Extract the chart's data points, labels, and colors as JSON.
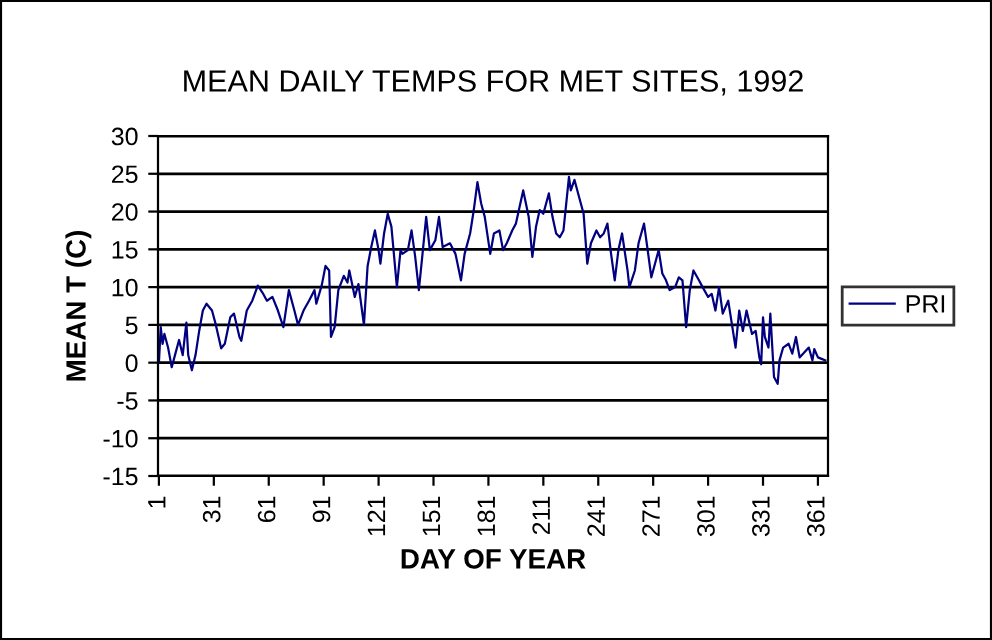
{
  "chart_data": {
    "type": "line",
    "title": "MEAN DAILY TEMPS FOR MET SITES, 1992",
    "xlabel": "DAY OF YEAR",
    "ylabel": "MEAN T (C)",
    "xlim": [
      0.5,
      366.5
    ],
    "xticks": [
      1,
      31,
      61,
      91,
      121,
      151,
      181,
      211,
      241,
      271,
      301,
      331,
      361
    ],
    "ylim": [
      -15,
      30
    ],
    "yticks": [
      -15,
      -10,
      -5,
      0,
      5,
      10,
      15,
      20,
      25,
      30
    ],
    "grid": "y",
    "legend": "right",
    "series": [
      {
        "name": "PRI",
        "color": "#000080",
        "x": [
          1,
          2,
          3,
          4,
          6,
          8,
          10,
          12,
          14,
          16,
          17,
          19,
          21,
          23,
          25,
          27,
          30,
          32,
          35,
          37,
          40,
          42,
          45,
          46,
          49,
          52,
          55,
          58,
          60,
          63,
          66,
          69,
          72,
          75,
          77,
          80,
          83,
          86,
          87,
          90,
          92,
          94,
          95,
          97,
          99,
          102,
          104,
          105,
          108,
          110,
          113,
          115,
          117,
          119,
          121,
          122,
          124,
          126,
          128,
          131,
          133,
          134,
          137,
          139,
          141,
          143,
          145,
          147,
          149,
          152,
          154,
          156,
          160,
          163,
          166,
          168,
          171,
          173,
          175,
          177,
          179,
          182,
          184,
          187,
          189,
          191,
          194,
          196,
          198,
          200,
          203,
          205,
          207,
          209,
          211,
          214,
          216,
          218,
          220,
          222,
          225,
          226,
          228,
          230,
          233,
          235,
          237,
          240,
          242,
          244,
          246,
          248,
          250,
          252,
          254,
          257,
          258,
          261,
          263,
          266,
          268,
          270,
          274,
          276,
          278,
          280,
          283,
          285,
          287,
          289,
          291,
          293,
          296,
          298,
          301,
          303,
          305,
          307,
          309,
          312,
          314,
          316,
          318,
          320,
          322,
          325,
          327,
          329,
          330,
          331,
          332,
          334,
          335,
          337,
          339,
          340,
          342,
          345,
          347,
          349,
          351,
          353,
          356,
          358,
          359,
          361,
          363,
          365
        ],
        "values": [
          0,
          4.7,
          2.5,
          3.8,
          2,
          -0.6,
          1.2,
          3,
          1,
          5.3,
          1,
          -1,
          1,
          4.2,
          6.9,
          7.8,
          6.9,
          5.1,
          1.9,
          2.5,
          6,
          6.5,
          3.4,
          2.9,
          6.9,
          8.2,
          10.2,
          9.1,
          8.2,
          8.7,
          6.9,
          4.7,
          9.6,
          6.9,
          5,
          6.9,
          8.2,
          9.6,
          7.8,
          10.3,
          12.8,
          12.2,
          3.4,
          4.7,
          9.6,
          11.5,
          10.6,
          12.2,
          8.7,
          10.4,
          5,
          12.8,
          15.3,
          17.5,
          14.9,
          13.1,
          17.1,
          19.7,
          18,
          10,
          14.9,
          14.4,
          14.9,
          17.5,
          14,
          9.6,
          14.4,
          19.3,
          14.9,
          16.2,
          19.3,
          15.3,
          15.8,
          14.4,
          10.9,
          14.4,
          17.1,
          20.2,
          23.9,
          21.1,
          19.3,
          14.4,
          17.1,
          17.5,
          14.9,
          15.8,
          17.5,
          18.4,
          20.6,
          22.8,
          19.3,
          14,
          18,
          20.2,
          19.7,
          22.4,
          19.3,
          17.1,
          16.6,
          17.5,
          24.6,
          22.8,
          24.2,
          22.4,
          19.7,
          13.1,
          15.8,
          17.5,
          16.6,
          17.1,
          18.4,
          14.4,
          10.9,
          14.9,
          17.1,
          12.2,
          10,
          12.2,
          15.8,
          18.4,
          14.9,
          11.3,
          14.9,
          11.8,
          10.9,
          9.6,
          10,
          11.3,
          10.9,
          4.7,
          9.6,
          12.2,
          10.9,
          10,
          8.7,
          9.1,
          6.9,
          10,
          6.5,
          8.2,
          5.1,
          2,
          6.9,
          4.2,
          6.9,
          3.8,
          4.2,
          0.7,
          -0.2,
          6,
          3.4,
          2,
          6.5,
          -1.9,
          -2.8,
          0.3,
          2,
          2.5,
          1.2,
          3.4,
          0.7,
          1.2,
          2,
          0.3,
          1.8,
          0.7,
          0.5,
          0.3
        ]
      }
    ]
  }
}
